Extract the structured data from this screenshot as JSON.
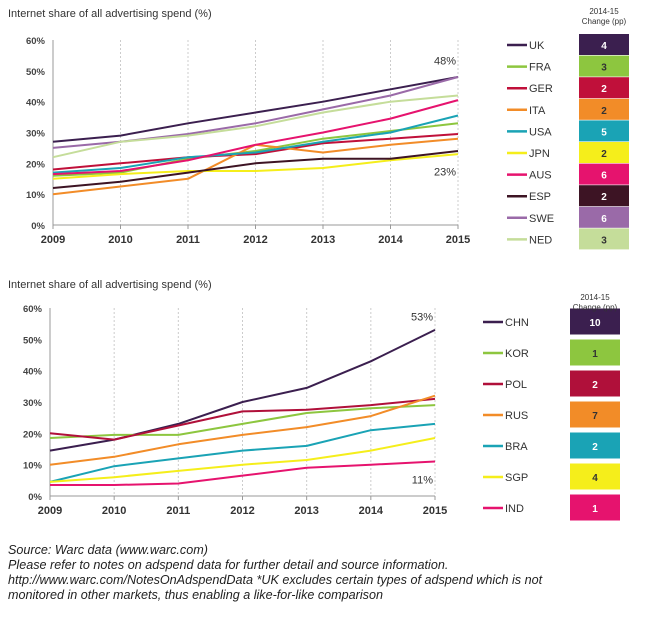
{
  "chart_data": [
    {
      "type": "line",
      "title": "Internet share of all advertising spend (%)",
      "x": [
        2009,
        2010,
        2011,
        2012,
        2013,
        2014,
        2015
      ],
      "ylim": [
        0,
        60
      ],
      "yticks": [
        "0%",
        "10%",
        "20%",
        "30%",
        "40%",
        "50%",
        "60%"
      ],
      "grid": "vertical dotted",
      "annotations": [
        "48%",
        "23%"
      ],
      "change_header": [
        "2014-15",
        "Change (pp)"
      ],
      "series": [
        {
          "name": "UK",
          "color": "#3b1f4f",
          "change": "4",
          "values": [
            27,
            29,
            33,
            36.5,
            40,
            44,
            48
          ]
        },
        {
          "name": "FRA",
          "color": "#8dc63f",
          "change": "3",
          "values": [
            16,
            17,
            21.5,
            24,
            28,
            30.5,
            33
          ]
        },
        {
          "name": "GER",
          "color": "#c0103a",
          "change": "2",
          "values": [
            18,
            20,
            22,
            23,
            26.5,
            28,
            29.5
          ]
        },
        {
          "name": "ITA",
          "color": "#f28c28",
          "change": "2",
          "values": [
            10,
            12.5,
            15,
            26,
            23.5,
            26,
            28
          ]
        },
        {
          "name": "USA",
          "color": "#1aa3b5",
          "change": "5",
          "values": [
            17,
            18.5,
            22,
            23.5,
            27,
            30,
            35.5
          ]
        },
        {
          "name": "JPN",
          "color": "#f5ee1b",
          "change": "2",
          "values": [
            15,
            16.5,
            17.5,
            17.5,
            18.5,
            21,
            23
          ]
        },
        {
          "name": "AUS",
          "color": "#e6136e",
          "change": "6",
          "values": [
            16.5,
            17.5,
            21,
            26,
            30,
            34.5,
            40.5
          ]
        },
        {
          "name": "ESP",
          "color": "#3d1424",
          "change": "2",
          "values": [
            12,
            14,
            17,
            20,
            21.5,
            21.5,
            24
          ]
        },
        {
          "name": "SWE",
          "color": "#9a6aa8",
          "change": "6",
          "values": [
            25,
            27,
            29.5,
            33,
            37.5,
            42,
            48
          ]
        },
        {
          "name": "NED",
          "color": "#c5dd9a",
          "change": "3",
          "values": [
            22,
            27,
            29,
            32,
            36.5,
            40,
            42
          ]
        }
      ]
    },
    {
      "type": "line",
      "title": "Internet share of all advertising spend (%)",
      "x": [
        2009,
        2010,
        2011,
        2012,
        2013,
        2014,
        2015
      ],
      "ylim": [
        0,
        60
      ],
      "yticks": [
        "0%",
        "10%",
        "20%",
        "30%",
        "40%",
        "50%",
        "60%"
      ],
      "grid": "vertical dotted",
      "annotations": [
        "53%",
        "11%"
      ],
      "change_header": [
        "2014-15",
        "Change (pp)"
      ],
      "series": [
        {
          "name": "CHN",
          "color": "#3b1f4f",
          "change": "10",
          "values": [
            14.5,
            18,
            23,
            30,
            34.5,
            43,
            53
          ]
        },
        {
          "name": "KOR",
          "color": "#8dc63f",
          "change": "1",
          "values": [
            18.5,
            19.5,
            19.5,
            23,
            26.5,
            28,
            29
          ]
        },
        {
          "name": "POL",
          "color": "#b0103a",
          "change": "2",
          "values": [
            20,
            18,
            22.5,
            27,
            27.5,
            29,
            31
          ]
        },
        {
          "name": "RUS",
          "color": "#f28c28",
          "change": "7",
          "values": [
            10,
            12.5,
            16.5,
            19.5,
            22,
            25.5,
            32
          ]
        },
        {
          "name": "BRA",
          "color": "#1aa3b5",
          "change": "2",
          "values": [
            4.5,
            9.5,
            12,
            14.5,
            16,
            21,
            23
          ]
        },
        {
          "name": "SGP",
          "color": "#f5ee1b",
          "change": "4",
          "values": [
            4.5,
            6,
            8,
            10,
            11.5,
            14.5,
            18.5
          ]
        },
        {
          "name": "IND",
          "color": "#e6136e",
          "change": "1",
          "values": [
            3.5,
            3.5,
            4,
            6.5,
            9,
            10,
            11
          ]
        }
      ]
    }
  ],
  "notes": {
    "source": "Source: Warc data (www.warc.com)",
    "line1": "Please refer to notes on adspend data for further detail and source information.",
    "line2": "http://www.warc.com/NotesOnAdspendData *UK excludes certain types of adspend which is not",
    "line3": "monitored in other markets, thus enabling a like-for-like comparison"
  }
}
